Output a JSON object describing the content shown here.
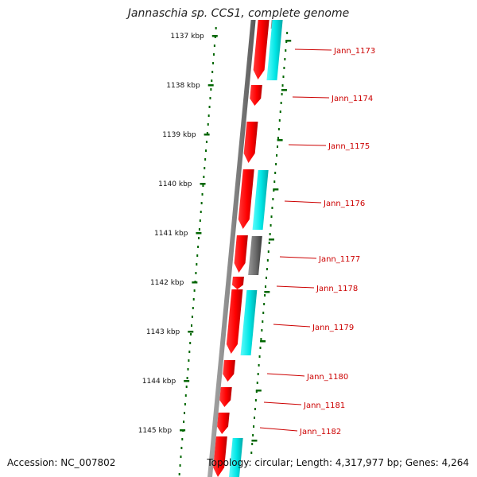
{
  "title": "Jannaschia sp. CCS1, complete genome",
  "accession": "Accession: NC_007802",
  "topology": "Topology: circular; Length: 4,317,977 bp; Genes: 4,264",
  "colors": {
    "forward_gene": "#ff0000",
    "forward_gene_dark": "#b00000",
    "cds_cyan": "#00e5e5",
    "cds_cyan_dark": "#00a8a8",
    "pseudo_grey": "#666666",
    "backbone": "#808080",
    "ruler": "#006600",
    "label": "#cc0000"
  },
  "ruler_ticks": [
    "1137 kbp",
    "1138 kbp",
    "1139 kbp",
    "1140 kbp",
    "1141 kbp",
    "1142 kbp",
    "1143 kbp",
    "1144 kbp",
    "1145 kbp"
  ],
  "gene_labels": [
    "Jann_1173",
    "Jann_1174",
    "Jann_1175",
    "Jann_1176",
    "Jann_1177",
    "Jann_1178",
    "Jann_1179",
    "Jann_1180",
    "Jann_1181",
    "Jann_1182"
  ]
}
